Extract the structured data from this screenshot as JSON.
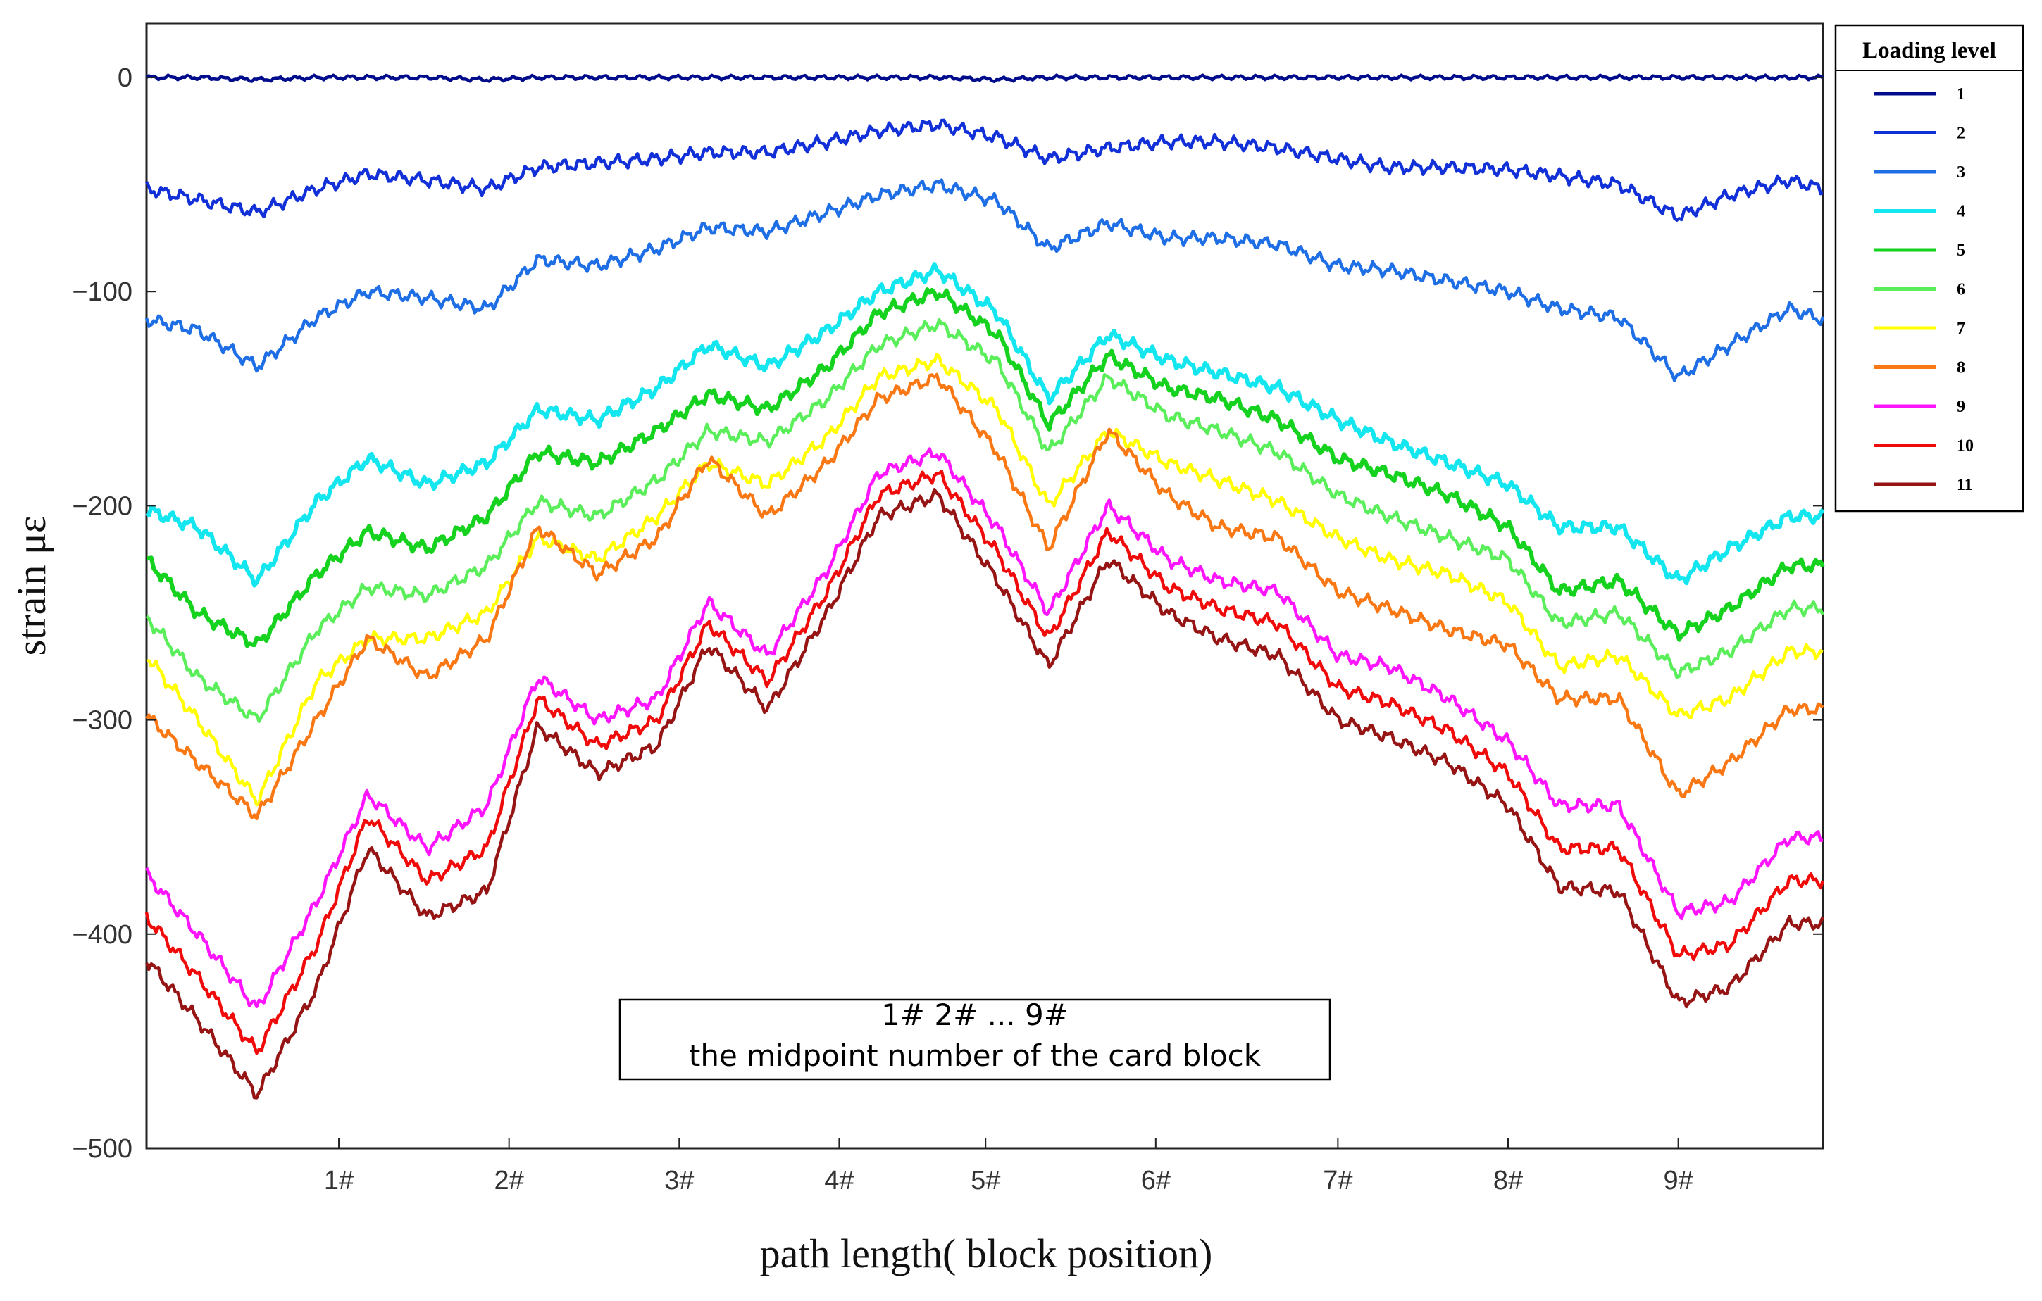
{
  "chart_data": {
    "type": "line",
    "title": "",
    "xlabel": "path length( block position)",
    "ylabel": "strain με",
    "ylim": [
      -500,
      0
    ],
    "xlim": [
      0,
      9.85
    ],
    "yticks": [
      {
        "value": 0,
        "label": "0"
      },
      {
        "value": -100,
        "label": "−100"
      },
      {
        "value": -200,
        "label": "−200"
      },
      {
        "value": -300,
        "label": "−300"
      },
      {
        "value": -400,
        "label": "−400"
      },
      {
        "value": -500,
        "label": "−500"
      }
    ],
    "xticks": [
      {
        "value": 1.13,
        "label": "1#"
      },
      {
        "value": 2.13,
        "label": "2#"
      },
      {
        "value": 3.13,
        "label": "3#"
      },
      {
        "value": 4.07,
        "label": "4#"
      },
      {
        "value": 4.93,
        "label": "5#"
      },
      {
        "value": 5.93,
        "label": "6#"
      },
      {
        "value": 7.0,
        "label": "7#"
      },
      {
        "value": 8.0,
        "label": "8#"
      },
      {
        "value": 9.0,
        "label": "9#"
      }
    ],
    "legend": {
      "title": "Loading level",
      "position": "right, outside top"
    },
    "annotation": {
      "line1": "1# 2# ... 9#",
      "line2": "the midpoint number of the card block"
    },
    "x": [
      0,
      0.3,
      0.65,
      1.0,
      1.3,
      1.65,
      2.0,
      2.3,
      2.65,
      3.0,
      3.3,
      3.65,
      4.0,
      4.3,
      4.65,
      5.0,
      5.3,
      5.65,
      6.0,
      6.3,
      6.65,
      7.0,
      7.3,
      7.65,
      8.0,
      8.3,
      8.65,
      9.0,
      9.3,
      9.65,
      9.85
    ],
    "series": [
      {
        "name": "1",
        "color": "#000c8c",
        "values": [
          0,
          0,
          -1,
          0,
          0,
          0,
          -1,
          0,
          0,
          0,
          0,
          0,
          0,
          0,
          0,
          -1,
          0,
          0,
          0,
          0,
          0,
          0,
          0,
          0,
          0,
          0,
          0,
          0,
          0,
          0,
          0
        ]
      },
      {
        "name": "2",
        "color": "#1230d8",
        "values": [
          -52,
          -57,
          -63,
          -52,
          -45,
          -48,
          -52,
          -42,
          -40,
          -38,
          -35,
          -35,
          -30,
          -25,
          -22,
          -28,
          -38,
          -33,
          -30,
          -30,
          -33,
          -38,
          -42,
          -42,
          -43,
          -46,
          -50,
          -65,
          -55,
          -48,
          -52
        ]
      },
      {
        "name": "3",
        "color": "#1e6ee6",
        "values": [
          -113,
          -118,
          -135,
          -112,
          -100,
          -103,
          -108,
          -85,
          -88,
          -80,
          -70,
          -72,
          -63,
          -55,
          -50,
          -58,
          -80,
          -68,
          -75,
          -75,
          -78,
          -88,
          -90,
          -95,
          -100,
          -108,
          -112,
          -140,
          -125,
          -108,
          -113
        ]
      },
      {
        "name": "4",
        "color": "#14e6f0",
        "values": [
          -202,
          -210,
          -235,
          -198,
          -178,
          -190,
          -180,
          -155,
          -160,
          -145,
          -125,
          -135,
          -118,
          -100,
          -90,
          -110,
          -150,
          -120,
          -132,
          -138,
          -145,
          -160,
          -170,
          -180,
          -190,
          -210,
          -210,
          -235,
          -220,
          -205,
          -205
        ]
      },
      {
        "name": "5",
        "color": "#14d21e",
        "values": [
          -225,
          -250,
          -265,
          -232,
          -212,
          -220,
          -205,
          -175,
          -180,
          -165,
          -148,
          -155,
          -135,
          -110,
          -100,
          -120,
          -162,
          -130,
          -145,
          -150,
          -160,
          -178,
          -185,
          -195,
          -210,
          -240,
          -235,
          -260,
          -248,
          -228,
          -228
        ]
      },
      {
        "name": "6",
        "color": "#5aee5a",
        "values": [
          -252,
          -280,
          -300,
          -258,
          -238,
          -242,
          -228,
          -198,
          -205,
          -188,
          -165,
          -170,
          -150,
          -125,
          -115,
          -133,
          -175,
          -140,
          -158,
          -165,
          -175,
          -195,
          -205,
          -215,
          -225,
          -255,
          -250,
          -278,
          -268,
          -248,
          -248
        ]
      },
      {
        "name": "7",
        "color": "#ffff00",
        "values": [
          -270,
          -300,
          -338,
          -282,
          -262,
          -262,
          -250,
          -215,
          -225,
          -205,
          -180,
          -190,
          -168,
          -140,
          -132,
          -155,
          -200,
          -165,
          -180,
          -188,
          -198,
          -215,
          -225,
          -232,
          -245,
          -275,
          -270,
          -298,
          -290,
          -268,
          -268
        ]
      },
      {
        "name": "8",
        "color": "#fa7814",
        "values": [
          -298,
          -320,
          -345,
          -300,
          -262,
          -280,
          -262,
          -210,
          -232,
          -215,
          -178,
          -205,
          -180,
          -150,
          -140,
          -175,
          -220,
          -165,
          -195,
          -210,
          -215,
          -240,
          -248,
          -258,
          -265,
          -290,
          -290,
          -335,
          -320,
          -295,
          -295
        ]
      },
      {
        "name": "9",
        "color": "#ff14ff",
        "values": [
          -372,
          -400,
          -435,
          -385,
          -335,
          -360,
          -340,
          -280,
          -300,
          -290,
          -245,
          -270,
          -230,
          -185,
          -175,
          -210,
          -250,
          -200,
          -225,
          -235,
          -240,
          -270,
          -275,
          -290,
          -310,
          -340,
          -340,
          -390,
          -385,
          -355,
          -355
        ]
      },
      {
        "name": "10",
        "color": "#f00a0a",
        "values": [
          -392,
          -420,
          -455,
          -405,
          -345,
          -375,
          -360,
          -290,
          -312,
          -300,
          -255,
          -282,
          -240,
          -195,
          -185,
          -222,
          -262,
          -212,
          -238,
          -248,
          -255,
          -285,
          -292,
          -305,
          -325,
          -360,
          -360,
          -410,
          -405,
          -375,
          -375
        ]
      },
      {
        "name": "11",
        "color": "#961414",
        "values": [
          -412,
          -440,
          -475,
          -425,
          -360,
          -392,
          -380,
          -303,
          -325,
          -312,
          -265,
          -295,
          -250,
          -205,
          -195,
          -235,
          -275,
          -225,
          -250,
          -262,
          -270,
          -300,
          -308,
          -320,
          -340,
          -378,
          -380,
          -432,
          -425,
          -395,
          -395
        ]
      }
    ]
  }
}
